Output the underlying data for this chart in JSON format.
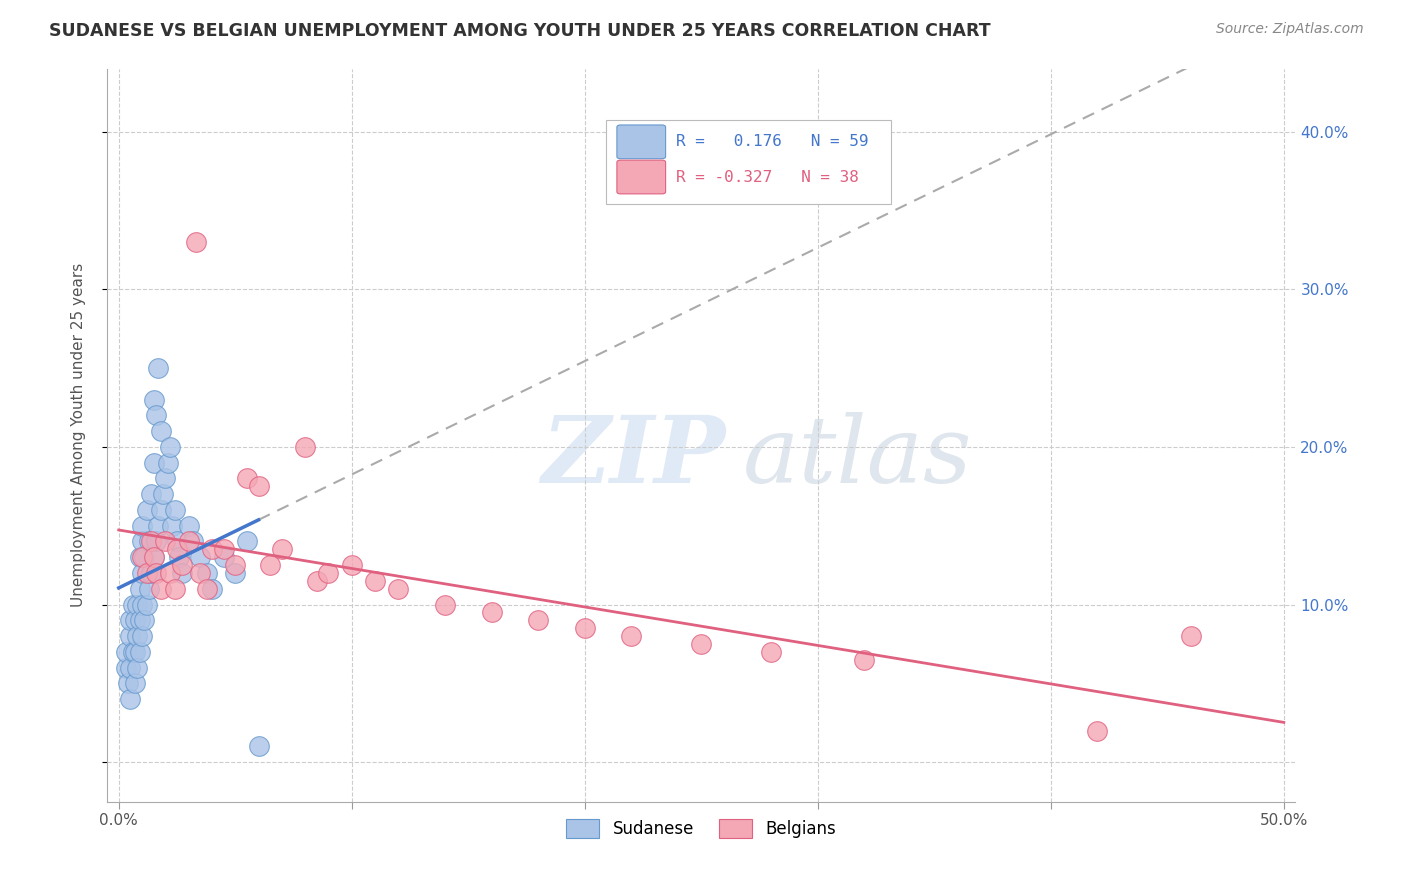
{
  "title": "SUDANESE VS BELGIAN UNEMPLOYMENT AMONG YOUTH UNDER 25 YEARS CORRELATION CHART",
  "source": "Source: ZipAtlas.com",
  "ylabel": "Unemployment Among Youth under 25 years",
  "background_color": "#ffffff",
  "grid_color": "#cccccc",
  "sudanese_color": "#aac4e8",
  "belgian_color": "#f4a7b5",
  "sudanese_edge": "#6699cc",
  "belgian_edge": "#e06080",
  "line_blue": "#4477cc",
  "line_pink": "#e06080",
  "R_sudanese": 0.176,
  "N_sudanese": 59,
  "R_belgian": -0.327,
  "N_belgian": 38,
  "legend_label1": "Sudanese",
  "legend_label2": "Belgians",
  "watermark": "ZIPatlas",
  "xlim": [
    -0.005,
    0.505
  ],
  "ylim": [
    -0.025,
    0.44
  ],
  "sudanese_x": [
    0.003,
    0.003,
    0.004,
    0.005,
    0.005,
    0.005,
    0.005,
    0.006,
    0.006,
    0.007,
    0.007,
    0.007,
    0.008,
    0.008,
    0.008,
    0.009,
    0.009,
    0.009,
    0.009,
    0.01,
    0.01,
    0.01,
    0.01,
    0.01,
    0.011,
    0.011,
    0.012,
    0.012,
    0.013,
    0.013,
    0.014,
    0.014,
    0.015,
    0.015,
    0.015,
    0.016,
    0.016,
    0.017,
    0.017,
    0.018,
    0.018,
    0.019,
    0.02,
    0.021,
    0.022,
    0.023,
    0.024,
    0.025,
    0.026,
    0.027,
    0.03,
    0.032,
    0.035,
    0.038,
    0.04,
    0.045,
    0.05,
    0.055,
    0.06
  ],
  "sudanese_y": [
    0.06,
    0.07,
    0.05,
    0.04,
    0.06,
    0.08,
    0.09,
    0.07,
    0.1,
    0.05,
    0.07,
    0.09,
    0.06,
    0.08,
    0.1,
    0.07,
    0.09,
    0.11,
    0.13,
    0.08,
    0.1,
    0.12,
    0.14,
    0.15,
    0.09,
    0.13,
    0.1,
    0.16,
    0.11,
    0.14,
    0.12,
    0.17,
    0.13,
    0.19,
    0.23,
    0.14,
    0.22,
    0.15,
    0.25,
    0.16,
    0.21,
    0.17,
    0.18,
    0.19,
    0.2,
    0.15,
    0.16,
    0.14,
    0.13,
    0.12,
    0.15,
    0.14,
    0.13,
    0.12,
    0.11,
    0.13,
    0.12,
    0.14,
    0.01
  ],
  "belgian_x": [
    0.01,
    0.012,
    0.014,
    0.015,
    0.016,
    0.018,
    0.02,
    0.022,
    0.024,
    0.025,
    0.027,
    0.03,
    0.033,
    0.035,
    0.038,
    0.04,
    0.045,
    0.05,
    0.055,
    0.06,
    0.065,
    0.07,
    0.08,
    0.085,
    0.09,
    0.1,
    0.11,
    0.12,
    0.14,
    0.16,
    0.18,
    0.2,
    0.22,
    0.25,
    0.28,
    0.32,
    0.42,
    0.46
  ],
  "belgian_y": [
    0.13,
    0.12,
    0.14,
    0.13,
    0.12,
    0.11,
    0.14,
    0.12,
    0.11,
    0.135,
    0.125,
    0.14,
    0.33,
    0.12,
    0.11,
    0.135,
    0.135,
    0.125,
    0.18,
    0.175,
    0.125,
    0.135,
    0.2,
    0.115,
    0.12,
    0.125,
    0.115,
    0.11,
    0.1,
    0.095,
    0.09,
    0.085,
    0.08,
    0.075,
    0.07,
    0.065,
    0.02,
    0.08
  ]
}
